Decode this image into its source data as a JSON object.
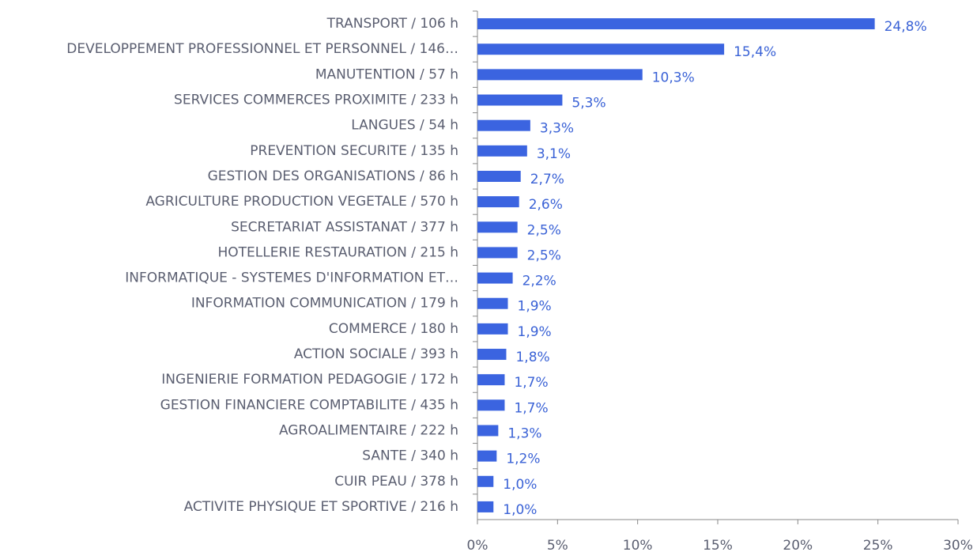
{
  "chart_data": {
    "type": "bar",
    "orientation": "horizontal",
    "categories": [
      "TRANSPORT  / 106 h",
      "DEVELOPPEMENT PROFESSIONNEL ET PERSONNEL  / 146…",
      "MANUTENTION  / 57 h",
      "SERVICES COMMERCES PROXIMITE  / 233 h",
      "LANGUES  / 54 h",
      "PREVENTION SECURITE  / 135 h",
      "GESTION DES ORGANISATIONS  / 86 h",
      "AGRICULTURE PRODUCTION VEGETALE  / 570 h",
      "SECRETARIAT ASSISTANAT  / 377 h",
      "HOTELLERIE RESTAURATION  / 215 h",
      "INFORMATIQUE - SYSTEMES D'INFORMATION ET…",
      "INFORMATION COMMUNICATION  / 179 h",
      "COMMERCE  / 180 h",
      "ACTION SOCIALE  / 393 h",
      "INGENIERIE FORMATION PEDAGOGIE  / 172 h",
      "GESTION FINANCIERE COMPTABILITE  / 435 h",
      "AGROALIMENTAIRE  / 222 h",
      "SANTE  / 340 h",
      "CUIR PEAU  / 378 h",
      "ACTIVITE PHYSIQUE ET SPORTIVE  / 216 h"
    ],
    "values": [
      24.8,
      15.4,
      10.3,
      5.3,
      3.3,
      3.1,
      2.7,
      2.6,
      2.5,
      2.5,
      2.2,
      1.9,
      1.9,
      1.8,
      1.7,
      1.7,
      1.3,
      1.2,
      1.0,
      1.0
    ],
    "value_labels": [
      "24,8%",
      "15,4%",
      "10,3%",
      "5,3%",
      "3,3%",
      "3,1%",
      "2,7%",
      "2,6%",
      "2,5%",
      "2,5%",
      "2,2%",
      "1,9%",
      "1,9%",
      "1,8%",
      "1,7%",
      "1,7%",
      "1,3%",
      "1,2%",
      "1,0%",
      "1,0%"
    ],
    "color": "#3b64e0",
    "xlim": [
      0,
      30
    ],
    "xticks": [
      {
        "value": 0,
        "label": "0%"
      },
      {
        "value": 5,
        "label": "5%"
      },
      {
        "value": 10,
        "label": "10%"
      },
      {
        "value": 15,
        "label": "15%"
      },
      {
        "value": 20,
        "label": "20%"
      },
      {
        "value": 25,
        "label": "25%"
      },
      {
        "value": 30,
        "label": "30%"
      }
    ],
    "grid": false
  }
}
